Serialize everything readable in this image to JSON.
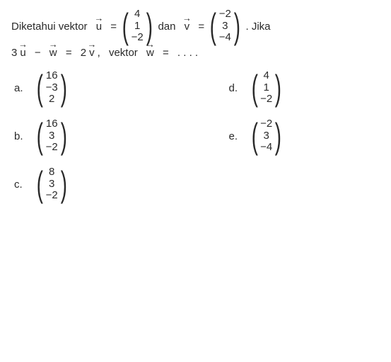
{
  "question": {
    "intro": "Diketahui vektor",
    "u_label": "u",
    "eq_sign": "=",
    "u_vec": [
      "4",
      "1",
      "−2"
    ],
    "and_word": "dan",
    "v_label": "v",
    "v_vec": [
      "−2",
      "3",
      "−4"
    ],
    "tail": ". Jika",
    "line2_prefix": "3",
    "u2": "u",
    "minus": "−",
    "w": "w",
    "eqsign2": "=",
    "coef2": "2",
    "v2": "v",
    "comma": ",",
    "vekword": "vektor",
    "w2": "w",
    "eqsign3": "=",
    "dots": ". . . ."
  },
  "options": {
    "a": {
      "label": "a.",
      "vec": [
        "16",
        "−3",
        "2"
      ]
    },
    "b": {
      "label": "b.",
      "vec": [
        "16",
        "3",
        "−2"
      ]
    },
    "c": {
      "label": "c.",
      "vec": [
        "8",
        "3",
        "−2"
      ]
    },
    "d": {
      "label": "d.",
      "vec": [
        "4",
        "1",
        "−2"
      ]
    },
    "e": {
      "label": "e.",
      "vec": [
        "−2",
        "3",
        "−4"
      ]
    }
  },
  "style": {
    "font_family": "Arial, sans-serif",
    "font_size_pt": 11,
    "paren_scale": 3.2,
    "text_color": "#2a2a2a",
    "background_color": "#ffffff"
  }
}
